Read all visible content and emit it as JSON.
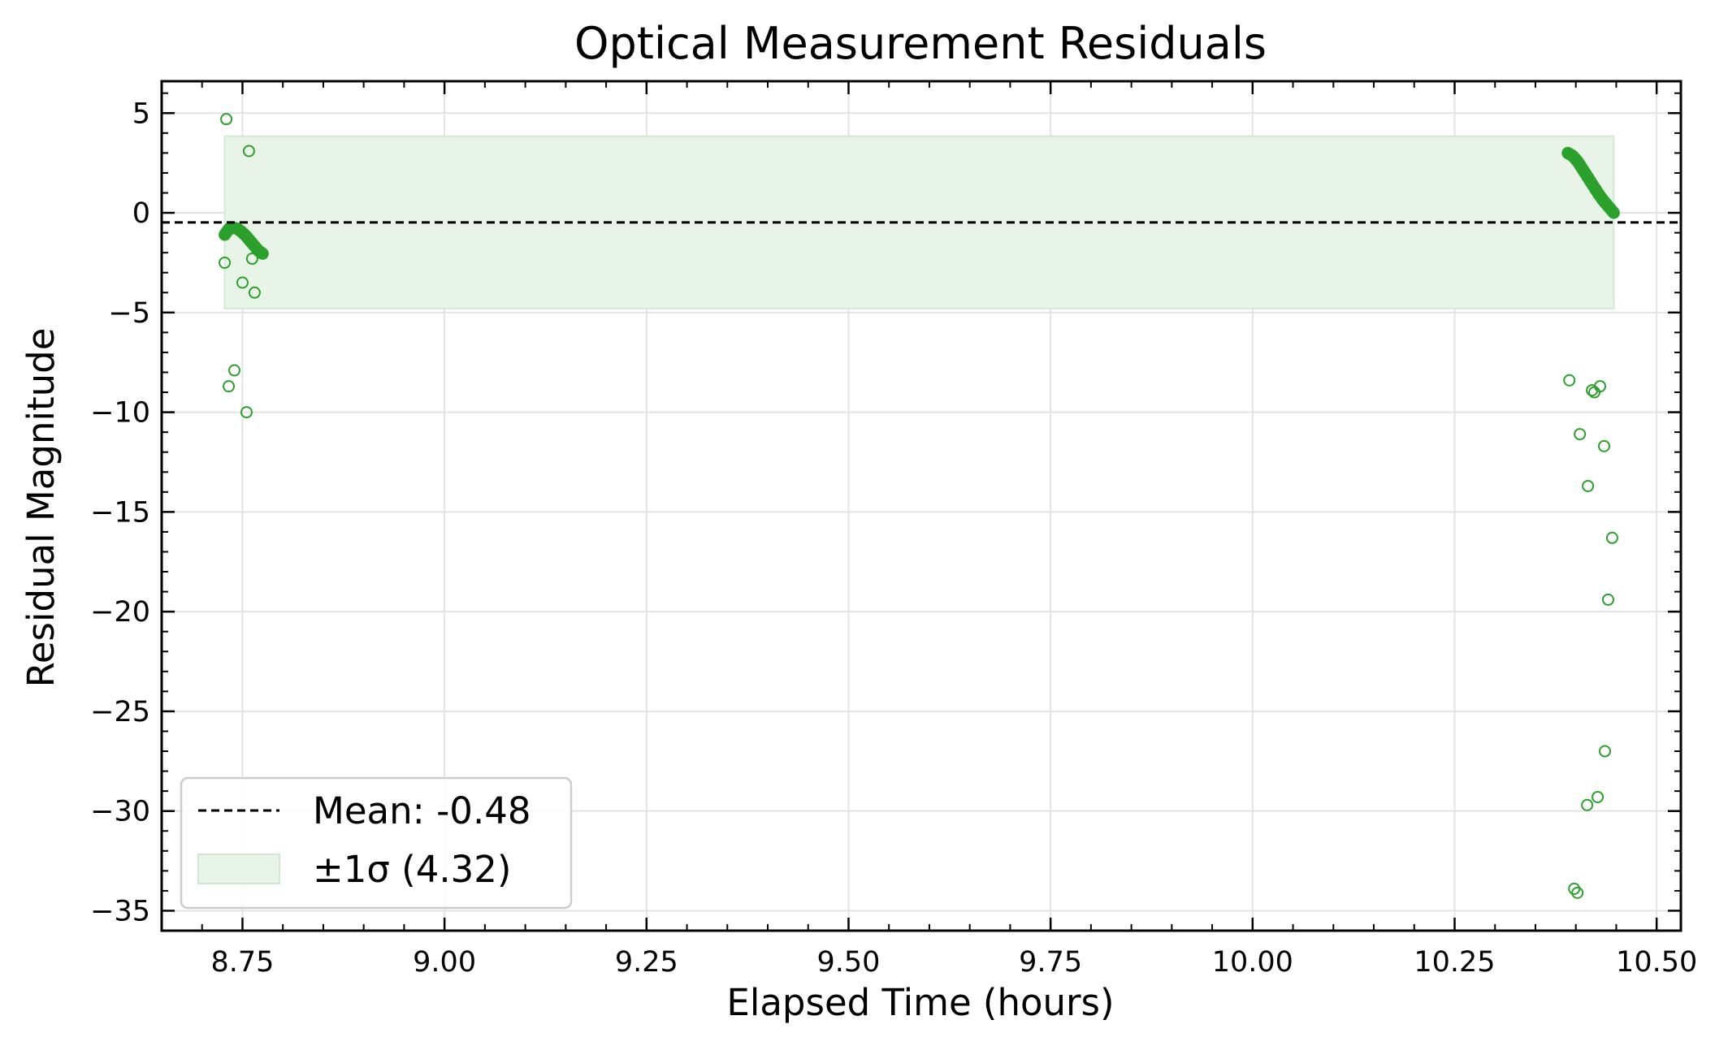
{
  "chart_data": {
    "type": "scatter",
    "title": "Optical Measurement Residuals",
    "xlabel": "Elapsed Time (hours)",
    "ylabel": "Residual Magnitude",
    "xlim": [
      8.65,
      10.53
    ],
    "ylim": [
      -36.0,
      6.6
    ],
    "xticks": [
      8.75,
      9.0,
      9.25,
      9.5,
      9.75,
      10.0,
      10.25,
      10.5
    ],
    "xtick_labels": [
      "8.75",
      "9.00",
      "9.25",
      "9.50",
      "9.75",
      "10.00",
      "10.25",
      "10.50"
    ],
    "yticks": [
      5,
      0,
      -5,
      -10,
      -15,
      -20,
      -25,
      -30,
      -35
    ],
    "ytick_labels": [
      "5",
      "0",
      "−5",
      "−10",
      "−15",
      "−20",
      "−25",
      "−30",
      "−35"
    ],
    "grid": true,
    "legend_position": "bottom-left",
    "colors": {
      "points": "#2ca02c",
      "band_fill": "#e8f4e8",
      "mean_line": "#000000"
    },
    "mean": {
      "value": -0.48,
      "label": "Mean: -0.48"
    },
    "sigma_band": {
      "lower": -4.8,
      "upper": 3.84,
      "x_start": 8.728,
      "x_end": 10.447,
      "label": "±1σ (4.32)"
    },
    "series": [
      {
        "style": "dense-filled",
        "segments": [
          {
            "x_start": 8.728,
            "x_end": 8.775,
            "y_values": [
              -1.1,
              -0.8,
              -0.75,
              -0.8,
              -0.95,
              -1.15,
              -1.4,
              -1.65,
              -1.9,
              -2.05
            ]
          },
          {
            "x_start": 10.39,
            "x_end": 10.447,
            "y_values": [
              3.0,
              2.85,
              2.55,
              2.15,
              1.75,
              1.35,
              0.95,
              0.6,
              0.3,
              0.0
            ]
          }
        ]
      },
      {
        "style": "open-outliers",
        "points": [
          {
            "x": 8.73,
            "y": 4.7
          },
          {
            "x": 8.758,
            "y": 3.1
          },
          {
            "x": 8.728,
            "y": -2.5
          },
          {
            "x": 8.762,
            "y": -2.3
          },
          {
            "x": 8.75,
            "y": -3.5
          },
          {
            "x": 8.765,
            "y": -4.0
          },
          {
            "x": 8.74,
            "y": -7.9
          },
          {
            "x": 8.733,
            "y": -8.7
          },
          {
            "x": 8.755,
            "y": -10.0
          },
          {
            "x": 10.392,
            "y": -8.4
          },
          {
            "x": 10.42,
            "y": -8.9
          },
          {
            "x": 10.423,
            "y": -9.0
          },
          {
            "x": 10.43,
            "y": -8.7
          },
          {
            "x": 10.405,
            "y": -11.1
          },
          {
            "x": 10.435,
            "y": -11.7
          },
          {
            "x": 10.415,
            "y": -13.7
          },
          {
            "x": 10.445,
            "y": -16.3
          },
          {
            "x": 10.44,
            "y": -19.4
          },
          {
            "x": 10.436,
            "y": -27.0
          },
          {
            "x": 10.427,
            "y": -29.3
          },
          {
            "x": 10.414,
            "y": -29.7
          },
          {
            "x": 10.398,
            "y": -33.9
          },
          {
            "x": 10.402,
            "y": -34.1
          }
        ]
      }
    ]
  }
}
